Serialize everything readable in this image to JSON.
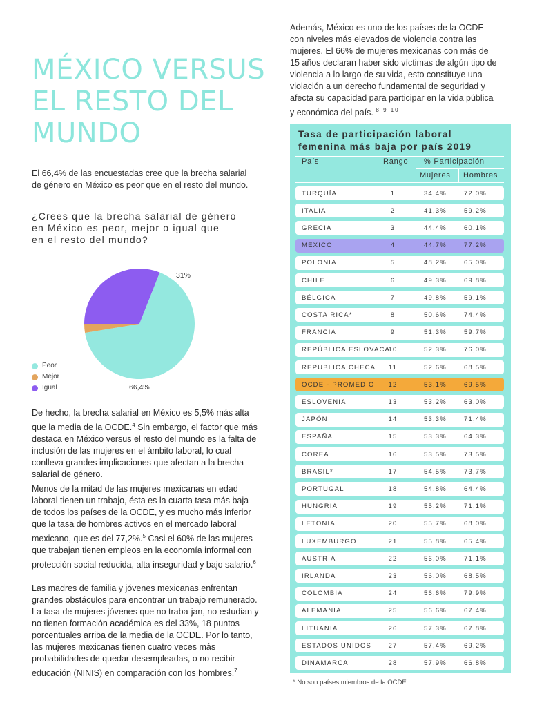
{
  "title": [
    "MÉXICO VERSUS",
    "EL RESTO DEL",
    "MUNDO"
  ],
  "intro": "El 66,4% de las encuestadas cree que la brecha salarial de género en México es peor que en el resto del mundo.",
  "question": [
    "¿Crees que la brecha salarial de género",
    "en México es peor, mejor o igual que",
    "en el resto del mundo?"
  ],
  "chart_data": {
    "type": "pie",
    "title": "",
    "series": [
      {
        "name": "Peor",
        "value": 66.4,
        "color": "#94e8df"
      },
      {
        "name": "Mejor",
        "value": 2.6,
        "color": "#e3a55e"
      },
      {
        "name": "Igual",
        "value": 31,
        "color": "#8d5cf0"
      }
    ],
    "data_labels": {
      "Peor": "66,4%",
      "Igual": "31%"
    },
    "legend_position": "bottom-left"
  },
  "paragraphs": {
    "p1": {
      "a": "De hecho, la brecha salarial en México es 5,5% más alta que la media de la OCDE.",
      "ref": "4",
      "b": " Sin embargo, el factor que más destaca en México versus el resto del mundo es la falta de inclusión de las mujeres en el ámbito laboral, lo cual conlleva grandes implicaciones que afectan a la brecha salarial de género."
    },
    "p2": {
      "a": "Menos de la mitad de las mujeres mexicanas en edad laboral tienen un trabajo, ésta es la cuarta tasa más baja de todos los países de la OCDE, y es mucho más inferior que la tasa de hombres activos en el mercado laboral mexicano, que es del 77,2%.",
      "ref1": "5",
      "b": " Casi el 60% de las mujeres que trabajan tienen empleos en la economía informal con protección social reducida, alta inseguridad y bajo salario.",
      "ref2": "6"
    },
    "p3": {
      "a": "Las madres de familia y jóvenes mexicanas enfrentan grandes obstáculos para encontrar un trabajo remunerado. La tasa de mujeres jóvenes que no traba-jan, no estudian y no tienen formación académica es del 33%, 18 puntos porcentuales arriba de la media de la OCDE.  Por lo tanto, las mujeres mexicanas tienen cuatro veces más probabilidades de quedar desempleadas, o no recibir educación (NINIS) en comparación con los hombres.",
      "ref": "7"
    }
  },
  "right_intro": {
    "text": "Además, México es uno de los países de la OCDE con niveles más elevados de violencia contra las mujeres. El 66% de mujeres mexicanas con más de 15 años declaran haber sido víctimas de algún tipo de violencia a lo largo de su vida, esto constituye una violación a un derecho fundamental de seguridad y afecta su capacidad para participar en la vida pública y económica del país.",
    "refs": "8 9 10"
  },
  "table": {
    "title": [
      "Tasa de participación laboral",
      "femenina más baja por país 2019"
    ],
    "headers": {
      "country": "País",
      "rank": "Rango",
      "participation": "% Participación",
      "women": "Mujeres",
      "men": "Hombres"
    },
    "highlight_colors": {
      "MÉXICO": "#a9a3f0",
      "OCDE - PROMEDIO": "#f4a93a"
    },
    "rows": [
      {
        "country": "TURQUÍA",
        "rank": "1",
        "women": "34,4%",
        "men": "72,0%"
      },
      {
        "country": "ITALIA",
        "rank": "2",
        "women": "41,3%",
        "men": "59,2%"
      },
      {
        "country": "GRECIA",
        "rank": "3",
        "women": "44,4%",
        "men": "60,1%"
      },
      {
        "country": "MÉXICO",
        "rank": "4",
        "women": "44,7%",
        "men": "77,2%"
      },
      {
        "country": "POLONIA",
        "rank": "5",
        "women": "48,2%",
        "men": "65,0%"
      },
      {
        "country": "CHILE",
        "rank": "6",
        "women": "49,3%",
        "men": "69,8%"
      },
      {
        "country": "BÉLGICA",
        "rank": "7",
        "women": "49,8%",
        "men": "59,1%"
      },
      {
        "country": "COSTA RICA*",
        "rank": "8",
        "women": "50,6%",
        "men": "74,4%"
      },
      {
        "country": "FRANCIA",
        "rank": "9",
        "women": "51,3%",
        "men": "59,7%"
      },
      {
        "country": "REPÚBLICA ESLOVACA",
        "rank": "10",
        "women": "52,3%",
        "men": "76,0%"
      },
      {
        "country": "REPUBLICA CHECA",
        "rank": "11",
        "women": "52,6%",
        "men": "68,5%"
      },
      {
        "country": "OCDE - PROMEDIO",
        "rank": "12",
        "women": "53,1%",
        "men": "69,5%"
      },
      {
        "country": "ESLOVENIA",
        "rank": "13",
        "women": "53,2%",
        "men": "63,0%"
      },
      {
        "country": "JAPÓN",
        "rank": "14",
        "women": "53,3%",
        "men": "71,4%"
      },
      {
        "country": "ESPAÑA",
        "rank": "15",
        "women": "53,3%",
        "men": "64,3%"
      },
      {
        "country": "COREA",
        "rank": "16",
        "women": "53,5%",
        "men": "73,5%"
      },
      {
        "country": "BRASIL*",
        "rank": "17",
        "women": "54,5%",
        "men": "73,7%"
      },
      {
        "country": "PORTUGAL",
        "rank": "18",
        "women": "54,8%",
        "men": "64,4%"
      },
      {
        "country": "HUNGRÍA",
        "rank": "19",
        "women": "55,2%",
        "men": "71,1%"
      },
      {
        "country": "LETONIA",
        "rank": "20",
        "women": "55,7%",
        "men": "68,0%"
      },
      {
        "country": "LUXEMBURGO",
        "rank": "21",
        "women": "55,8%",
        "men": "65,4%"
      },
      {
        "country": "AUSTRIA",
        "rank": "22",
        "women": "56,0%",
        "men": "71,1%"
      },
      {
        "country": "IRLANDA",
        "rank": "23",
        "women": "56,0%",
        "men": "68,5%"
      },
      {
        "country": "COLOMBIA",
        "rank": "24",
        "women": "56,6%",
        "men": "79,9%"
      },
      {
        "country": "ALEMANIA",
        "rank": "25",
        "women": "56,6%",
        "men": "67,4%"
      },
      {
        "country": "LITUANIA",
        "rank": "26",
        "women": "57,3%",
        "men": "67,8%"
      },
      {
        "country": "ESTADOS UNIDOS",
        "rank": "27",
        "women": "57,4%",
        "men": "69,2%"
      },
      {
        "country": "DINAMARCA",
        "rank": "28",
        "women": "57,9%",
        "men": "66,8%"
      }
    ]
  },
  "footnote": "* No son países miembros de la OCDE"
}
